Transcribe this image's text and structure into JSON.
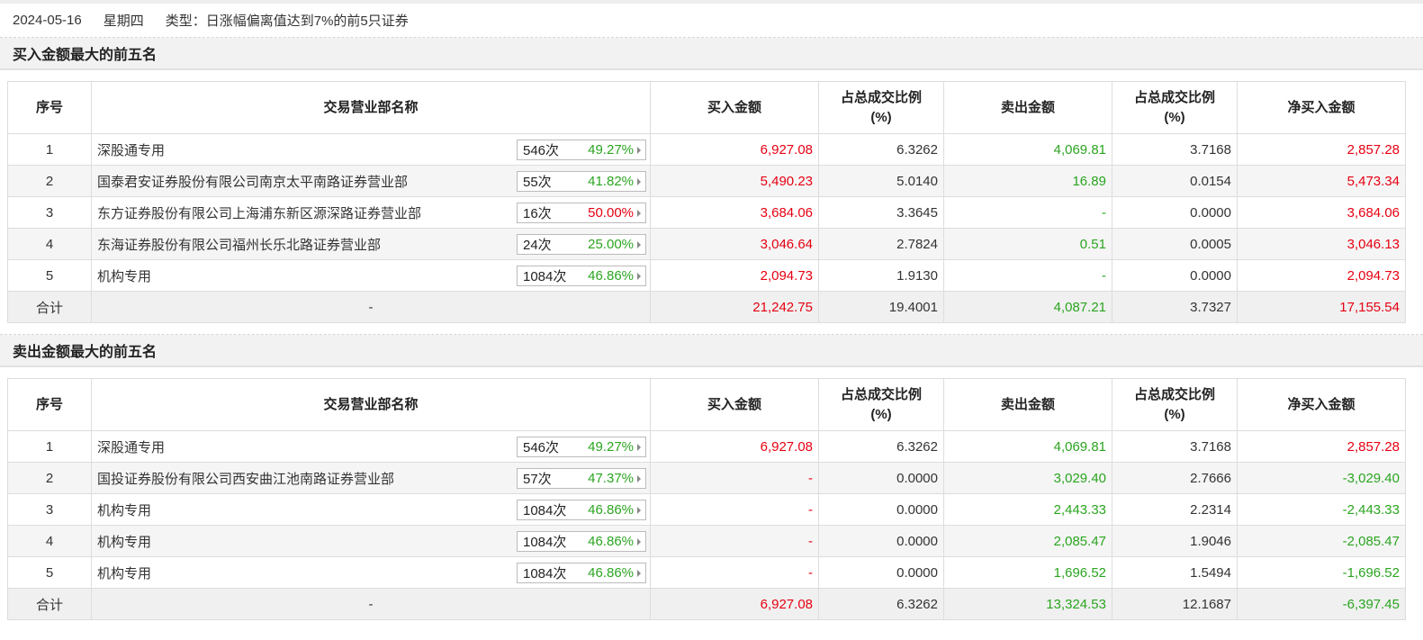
{
  "topbar": {
    "date": "2024-05-16",
    "weekday": "星期四",
    "type_text": "类型：日涨幅偏离值达到7%的前5只证券"
  },
  "colors": {
    "up": "#e60012",
    "down": "#2ba520"
  },
  "headers": {
    "seq": "序号",
    "name": "交易营业部名称",
    "buy": "买入金额",
    "buy_ratio_line1": "占总成交比例",
    "buy_ratio_line2": "(%)",
    "sell": "卖出金额",
    "sell_ratio_line1": "占总成交比例",
    "sell_ratio_line2": "(%)",
    "net": "净买入金额"
  },
  "buy_section": {
    "title": "买入金额最大的前五名",
    "rows": [
      {
        "seq": "1",
        "name": "深股通专用",
        "count": "546次",
        "rate": "49.27%",
        "buy": "6,927.08",
        "buy_ratio": "6.3262",
        "sell": "4,069.81",
        "sell_ratio": "3.7168",
        "net": "2,857.28"
      },
      {
        "seq": "2",
        "name": "国泰君安证券股份有限公司南京太平南路证券营业部",
        "count": "55次",
        "rate": "41.82%",
        "buy": "5,490.23",
        "buy_ratio": "5.0140",
        "sell": "16.89",
        "sell_ratio": "0.0154",
        "net": "5,473.34"
      },
      {
        "seq": "3",
        "name": "东方证券股份有限公司上海浦东新区源深路证券营业部",
        "count": "16次",
        "rate": "50.00%",
        "buy": "3,684.06",
        "buy_ratio": "3.3645",
        "sell": "-",
        "sell_ratio": "0.0000",
        "net": "3,684.06"
      },
      {
        "seq": "4",
        "name": "东海证券股份有限公司福州长乐北路证券营业部",
        "count": "24次",
        "rate": "25.00%",
        "buy": "3,046.64",
        "buy_ratio": "2.7824",
        "sell": "0.51",
        "sell_ratio": "0.0005",
        "net": "3,046.13"
      },
      {
        "seq": "5",
        "name": "机构专用",
        "count": "1084次",
        "rate": "46.86%",
        "buy": "2,094.73",
        "buy_ratio": "1.9130",
        "sell": "-",
        "sell_ratio": "0.0000",
        "net": "2,094.73"
      }
    ],
    "total": {
      "label": "合计",
      "name": "-",
      "buy": "21,242.75",
      "buy_ratio": "19.4001",
      "sell": "4,087.21",
      "sell_ratio": "3.7327",
      "net": "17,155.54"
    }
  },
  "sell_section": {
    "title": "卖出金额最大的前五名",
    "rows": [
      {
        "seq": "1",
        "name": "深股通专用",
        "count": "546次",
        "rate": "49.27%",
        "buy": "6,927.08",
        "buy_ratio": "6.3262",
        "sell": "4,069.81",
        "sell_ratio": "3.7168",
        "net": "2,857.28"
      },
      {
        "seq": "2",
        "name": "国投证券股份有限公司西安曲江池南路证券营业部",
        "count": "57次",
        "rate": "47.37%",
        "buy": "-",
        "buy_ratio": "0.0000",
        "sell": "3,029.40",
        "sell_ratio": "2.7666",
        "net": "-3,029.40"
      },
      {
        "seq": "3",
        "name": "机构专用",
        "count": "1084次",
        "rate": "46.86%",
        "buy": "-",
        "buy_ratio": "0.0000",
        "sell": "2,443.33",
        "sell_ratio": "2.2314",
        "net": "-2,443.33"
      },
      {
        "seq": "4",
        "name": "机构专用",
        "count": "1084次",
        "rate": "46.86%",
        "buy": "-",
        "buy_ratio": "0.0000",
        "sell": "2,085.47",
        "sell_ratio": "1.9046",
        "net": "-2,085.47"
      },
      {
        "seq": "5",
        "name": "机构专用",
        "count": "1084次",
        "rate": "46.86%",
        "buy": "-",
        "buy_ratio": "0.0000",
        "sell": "1,696.52",
        "sell_ratio": "1.5494",
        "net": "-1,696.52"
      }
    ],
    "total": {
      "label": "合计",
      "name": "-",
      "buy": "6,927.08",
      "buy_ratio": "6.3262",
      "sell": "13,324.53",
      "sell_ratio": "12.1687",
      "net": "-6,397.45"
    }
  }
}
